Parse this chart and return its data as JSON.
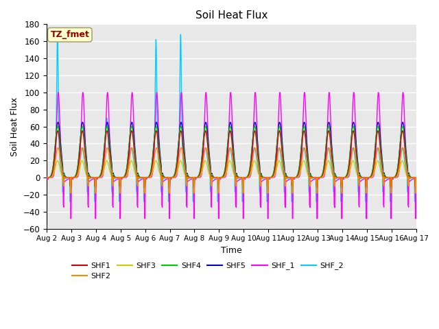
{
  "title": "Soil Heat Flux",
  "xlabel": "Time",
  "ylabel": "Soil Heat Flux",
  "ylim": [
    -60,
    180
  ],
  "yticks": [
    -60,
    -40,
    -20,
    0,
    20,
    40,
    60,
    80,
    100,
    120,
    140,
    160,
    180
  ],
  "xtick_labels": [
    "Aug 2",
    "Aug 3",
    "Aug 4",
    "Aug 5",
    "Aug 6",
    "Aug 7",
    "Aug 8",
    "Aug 9",
    "Aug 10",
    "Aug 11",
    "Aug 12",
    "Aug 13",
    "Aug 14",
    "Aug 15",
    "Aug 16",
    "Aug 17"
  ],
  "bg_color": "#e8e8e8",
  "annotation_text": "TZ_fmet",
  "annotation_bg": "#ffffcc",
  "annotation_fg": "#990000",
  "series_colors": {
    "SHF1": "#cc0000",
    "SHF2": "#ff8800",
    "SHF3": "#cccc00",
    "SHF4": "#00cc00",
    "SHF5": "#0000cc",
    "SHF_1": "#ff00ff",
    "SHF_2": "#00ccff"
  },
  "legend_entries": [
    "SHF1",
    "SHF2",
    "SHF3",
    "SHF4",
    "SHF5",
    "SHF_1",
    "SHF_2"
  ]
}
